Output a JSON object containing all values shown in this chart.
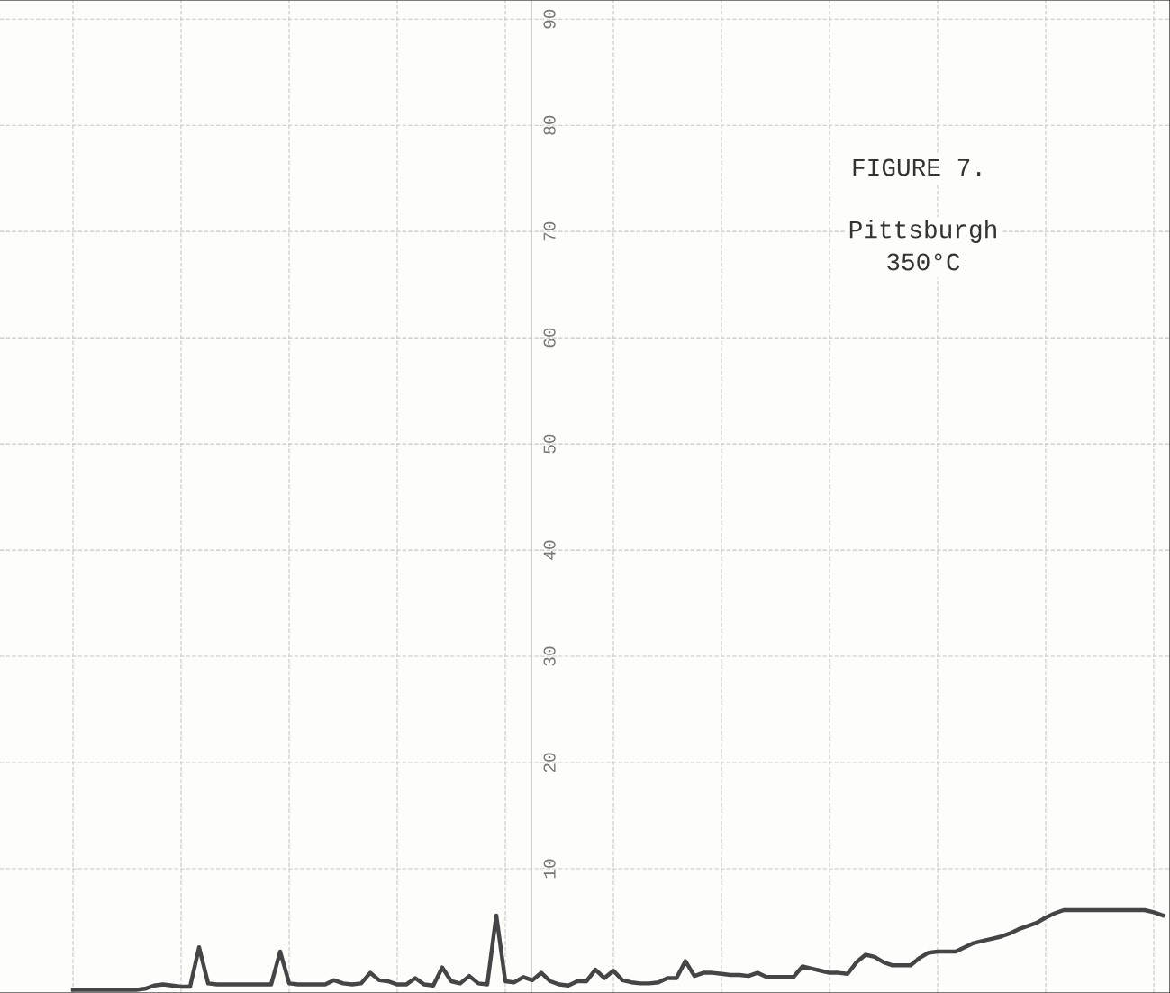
{
  "chart_data": {
    "type": "line",
    "title": "FIGURE 7.",
    "subtitle": "Pittsburgh\n350°C",
    "categories": [
      null,
      null,
      null,
      null,
      null,
      null,
      null,
      null,
      null,
      null,
      null,
      null,
      null,
      null,
      null,
      null,
      null,
      null,
      null,
      null,
      null,
      null,
      null,
      null,
      null,
      null,
      null,
      null,
      null,
      null,
      null,
      null,
      null,
      null,
      null,
      null,
      null,
      null,
      null,
      null,
      null,
      null,
      null,
      null,
      null,
      null,
      null,
      null,
      null,
      null,
      null,
      null,
      null,
      null,
      null,
      null,
      null,
      null,
      null,
      null,
      null,
      null,
      null,
      null,
      null,
      null,
      null,
      null,
      null,
      null,
      null,
      null,
      null,
      null,
      null,
      null,
      null,
      null,
      null,
      null,
      null,
      null,
      null,
      null,
      null,
      null,
      null,
      null,
      null,
      null,
      null,
      null,
      null,
      null,
      null,
      null,
      null,
      null,
      null,
      null,
      null,
      null,
      null,
      null,
      null,
      null,
      null,
      null,
      null,
      null,
      null,
      null,
      null,
      null,
      null,
      null,
      null,
      null,
      null,
      null,
      null,
      null
    ],
    "series": [
      {
        "color": "#454545",
        "values": [
          -1.4,
          -1.4,
          -1.4,
          -1.4,
          -1.4,
          -1.4,
          -1.4,
          -1.4,
          -1.3,
          -1.0,
          -0.9,
          -1.0,
          -1.1,
          -1.1,
          2.6,
          -0.8,
          -0.9,
          -0.9,
          -0.9,
          -0.9,
          -0.9,
          -0.9,
          -0.9,
          2.2,
          -0.8,
          -0.9,
          -0.9,
          -0.9,
          -0.9,
          -0.5,
          -0.8,
          -0.9,
          -0.8,
          0.2,
          -0.5,
          -0.6,
          -0.9,
          -0.9,
          -0.3,
          -0.9,
          -1.0,
          0.7,
          -0.6,
          -0.8,
          -0.1,
          -0.8,
          -0.9,
          5.6,
          -0.6,
          -0.7,
          -0.2,
          -0.5,
          0.2,
          -0.6,
          -0.9,
          -1.0,
          -0.6,
          -0.6,
          0.5,
          -0.3,
          0.4,
          -0.5,
          -0.7,
          -0.8,
          -0.8,
          -0.7,
          -0.3,
          -0.3,
          1.3,
          -0.1,
          0.2,
          0.2,
          0.1,
          0.0,
          0.0,
          -0.1,
          0.2,
          -0.2,
          -0.2,
          -0.2,
          -0.2,
          0.8,
          0.6,
          0.4,
          0.2,
          0.2,
          0.1,
          1.2,
          1.9,
          1.7,
          1.2,
          0.9,
          0.9,
          0.9,
          1.6,
          2.1,
          2.2,
          2.2,
          2.2,
          2.6,
          3.0,
          3.2,
          3.4,
          3.6,
          3.9,
          4.3,
          4.6,
          4.9,
          5.4,
          5.8,
          6.1,
          6.1,
          6.1,
          6.1,
          6.1,
          6.1,
          6.1,
          6.1,
          6.1,
          6.1,
          5.9,
          5.6
        ]
      }
    ],
    "ylim": [
      -1.7,
      91.8
    ],
    "yticks": [
      10,
      20,
      30,
      40,
      50,
      60,
      70,
      80,
      90
    ],
    "grid": true,
    "tick_labels": "y",
    "line_style": "solid",
    "marker": "none"
  }
}
